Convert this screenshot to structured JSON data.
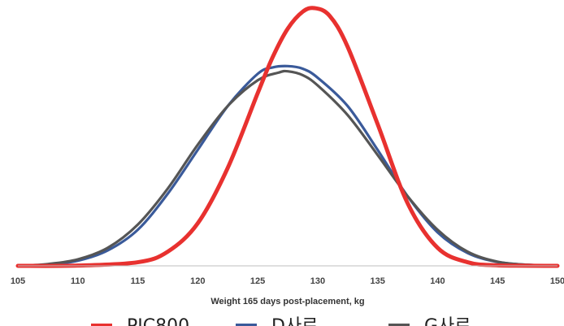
{
  "chart_data": {
    "type": "line",
    "title": "",
    "xlabel": "Weight 165 days post-placement, kg",
    "ylabel": "",
    "xlim": [
      105,
      150
    ],
    "xticks": [
      105,
      110,
      115,
      120,
      125,
      130,
      135,
      140,
      145,
      150
    ],
    "y_axis_shown": false,
    "grid": false,
    "legend_position": "bottom",
    "series": [
      {
        "name": "PIC800",
        "color": "#e8312f",
        "x": [
          105,
          110,
          115,
          117.5,
          120,
          122.5,
          125,
          126.25,
          127.5,
          128.75,
          129.75,
          131,
          132.5,
          135,
          137.5,
          140,
          142.5,
          145,
          150
        ],
        "y": [
          0,
          0.1,
          1.4,
          5.5,
          16.5,
          38,
          67,
          81,
          92,
          98.6,
          100,
          97,
          85,
          55,
          24.3,
          7,
          1.4,
          0.2,
          0
        ]
      },
      {
        "name": "D사료",
        "color": "#3a5a9a",
        "x": [
          105,
          107.5,
          110,
          112.5,
          115,
          117.5,
          120,
          122.5,
          125,
          126.25,
          127.5,
          128.75,
          130,
          132.5,
          135,
          137.5,
          140,
          142.5,
          145,
          147.5,
          150
        ],
        "y": [
          0,
          0.5,
          2,
          6,
          14,
          28,
          45,
          62,
          74.5,
          77,
          77.5,
          76.5,
          73,
          62,
          45,
          27,
          13,
          5,
          1.5,
          0.4,
          0
        ]
      },
      {
        "name": "G사료",
        "color": "#555555",
        "x": [
          105,
          107.5,
          110,
          112.5,
          115,
          117.5,
          120,
          122.5,
          125,
          126.75,
          127.5,
          128.75,
          130,
          132.5,
          135,
          137.5,
          140,
          142.5,
          145,
          147.5,
          150
        ],
        "y": [
          0,
          0.7,
          2.5,
          7,
          16,
          30,
          47,
          62,
          72,
          75,
          75.5,
          74,
          70,
          58.5,
          43,
          27,
          14,
          5.5,
          1.6,
          0.4,
          0
        ]
      }
    ]
  }
}
